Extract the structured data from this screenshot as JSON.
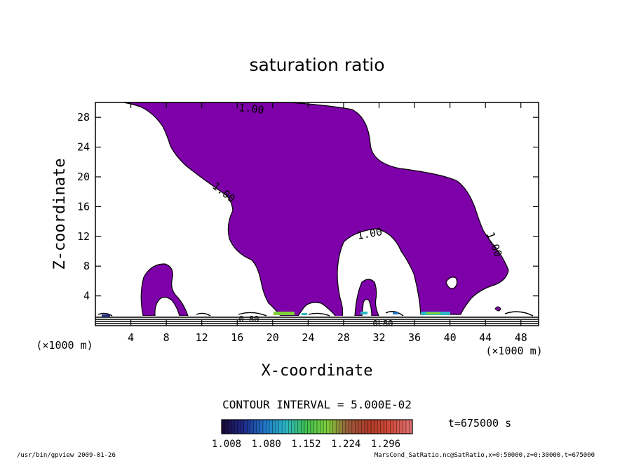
{
  "chart_data": {
    "type": "contour",
    "title": "saturation ratio",
    "xlabel": "X-coordinate",
    "ylabel": "Z-coordinate",
    "x_unit": "(×1000 m)",
    "z_unit": "(×1000 m)",
    "xlim": [
      0,
      50
    ],
    "zlim": [
      0,
      30
    ],
    "xticks": [
      4,
      8,
      12,
      16,
      20,
      24,
      28,
      32,
      36,
      40,
      44,
      48
    ],
    "zticks": [
      4,
      8,
      12,
      16,
      20,
      24,
      28
    ],
    "contour_interval_text": "CONTOUR INTERVAL = 5.000E-02",
    "time_text": "t=675000 s",
    "contour_labels": [
      "1.00",
      "1.00",
      "1.00",
      "1.00",
      "0.80",
      "0.80"
    ],
    "colorbar": {
      "labels": [
        "1.008",
        "1.080",
        "1.152",
        "1.224",
        "1.296"
      ],
      "colors": [
        "#1a0a3c",
        "#1f2a8a",
        "#1f77c9",
        "#2bb7c7",
        "#3fbf4f",
        "#7fcf3a",
        "#9b5a3c",
        "#b03a28",
        "#d04a3a",
        "#e07070"
      ]
    },
    "fill_color": "#7d00a8",
    "footer_left": "/usr/bin/gpview   2009-01-26",
    "footer_right": "MarsCond_SatRatio.nc@SatRatio,x=0:50000,z=0:30000,t=675000"
  }
}
